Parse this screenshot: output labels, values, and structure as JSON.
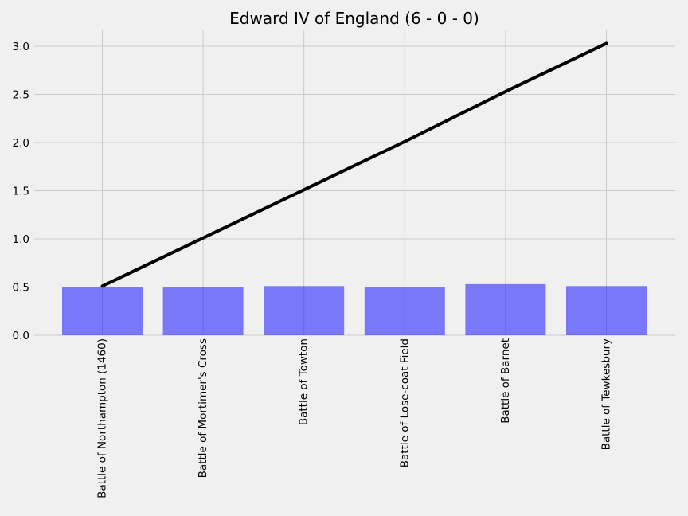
{
  "chart_data": {
    "type": "bar",
    "title": "Edward IV of England (6 - 0 - 0)",
    "xlabel": "",
    "ylabel": "",
    "categories": [
      "Battle of Northampton (1460)",
      "Battle of Mortimer's Cross",
      "Battle of Towton",
      "Battle of Lose-coat Field",
      "Battle of Barnet",
      "Battle of Tewkesbury"
    ],
    "series": [
      {
        "type": "bar",
        "values": [
          0.5,
          0.5,
          0.51,
          0.5,
          0.53,
          0.51
        ]
      },
      {
        "type": "line",
        "values": [
          0.51,
          1.01,
          1.51,
          2.01,
          2.53,
          3.03
        ]
      }
    ],
    "ylim": [
      0,
      3.17
    ],
    "yticks": [
      "0.0",
      "0.5",
      "1.0",
      "1.5",
      "2.0",
      "2.5",
      "3.0"
    ],
    "grid": true,
    "colors": {
      "bar": "#0000ff",
      "line": "#000000",
      "background": "#f0f0f0",
      "grid": "#cbcbcb"
    }
  }
}
